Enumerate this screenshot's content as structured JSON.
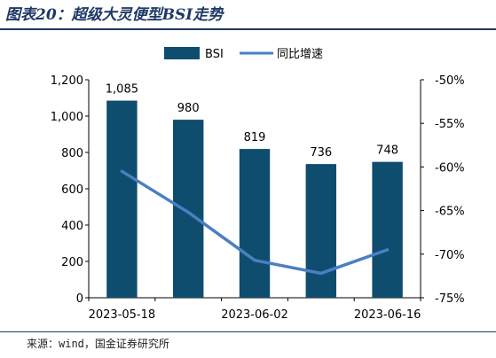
{
  "title": "图表20：超级大灵便型BSI走势",
  "source": "来源：wind，国金证券研究所",
  "chart_data": {
    "type": "bar",
    "categories": [
      "2023-05-18",
      "",
      "2023-06-02",
      "",
      "2023-06-16"
    ],
    "series": [
      {
        "name": "BSI",
        "type": "bar",
        "axis": "left",
        "color": "#0e4d6e",
        "values": [
          1085,
          980,
          819,
          736,
          748
        ],
        "labels": [
          "1,085",
          "980",
          "819",
          "736",
          "748"
        ]
      },
      {
        "name": "同比增速",
        "type": "line",
        "axis": "right",
        "color": "#4a7fc1",
        "values": [
          -60.5,
          -65.2,
          -70.7,
          -72.2,
          -69.5
        ]
      }
    ],
    "y_left": {
      "min": 0,
      "max": 1200,
      "ticks": [
        "0",
        "200",
        "400",
        "600",
        "800",
        "1,000",
        "1,200"
      ]
    },
    "y_right": {
      "min": -75,
      "max": -50,
      "ticks": [
        "-75%",
        "-70%",
        "-65%",
        "-60%",
        "-55%",
        "-50%"
      ]
    },
    "legend": "top-center",
    "grid": false
  }
}
